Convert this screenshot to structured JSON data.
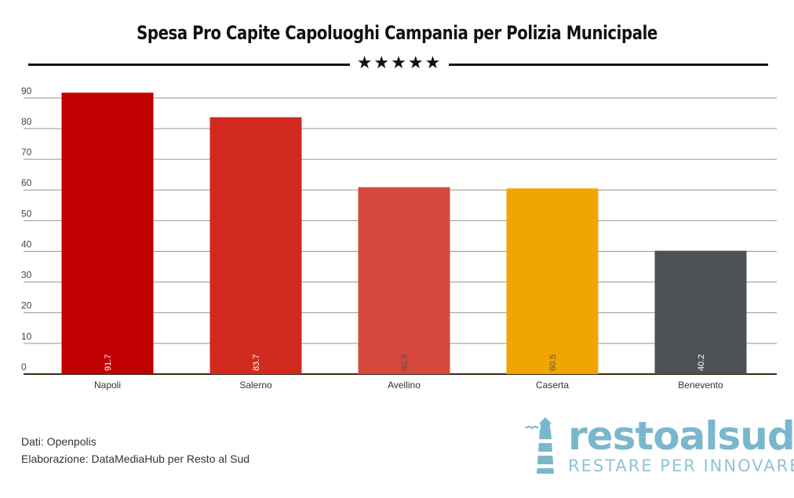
{
  "title": "Spesa Pro Capite Capoluoghi Campania per Polizia Municipale",
  "stars": "★★★★★",
  "chart_data": {
    "type": "bar",
    "title": "Spesa Pro Capite Capoluoghi Campania per Polizia Municipale",
    "categories": [
      "Napoli",
      "Salerno",
      "Avellino",
      "Caserta",
      "Benevento"
    ],
    "values": [
      91.7,
      83.7,
      60.9,
      60.5,
      40.2
    ],
    "value_labels": [
      "91.7",
      "83.7",
      "60.9",
      "60.5",
      "40.2"
    ],
    "colors": [
      "#c00000",
      "#d22a1e",
      "#d6483c",
      "#f0a500",
      "#4d5155"
    ],
    "label_colors": [
      "#ffffff",
      "#ffffff",
      "#555555",
      "#555555",
      "#ffffff"
    ],
    "yticks": [
      "0",
      "10",
      "20",
      "30",
      "40",
      "50",
      "60",
      "70",
      "80",
      "90"
    ],
    "ylim": [
      0,
      92
    ],
    "xlabel": "",
    "ylabel": "",
    "grid": true
  },
  "footer": {
    "source": "Dati: Openpolis",
    "elaboration": "Elaborazione: DataMediaHub per Resto al Sud"
  },
  "logo": {
    "name": "restoalsud",
    "tagline": "RESTARE PER INNOVARE",
    "icon": "lighthouse-icon"
  }
}
